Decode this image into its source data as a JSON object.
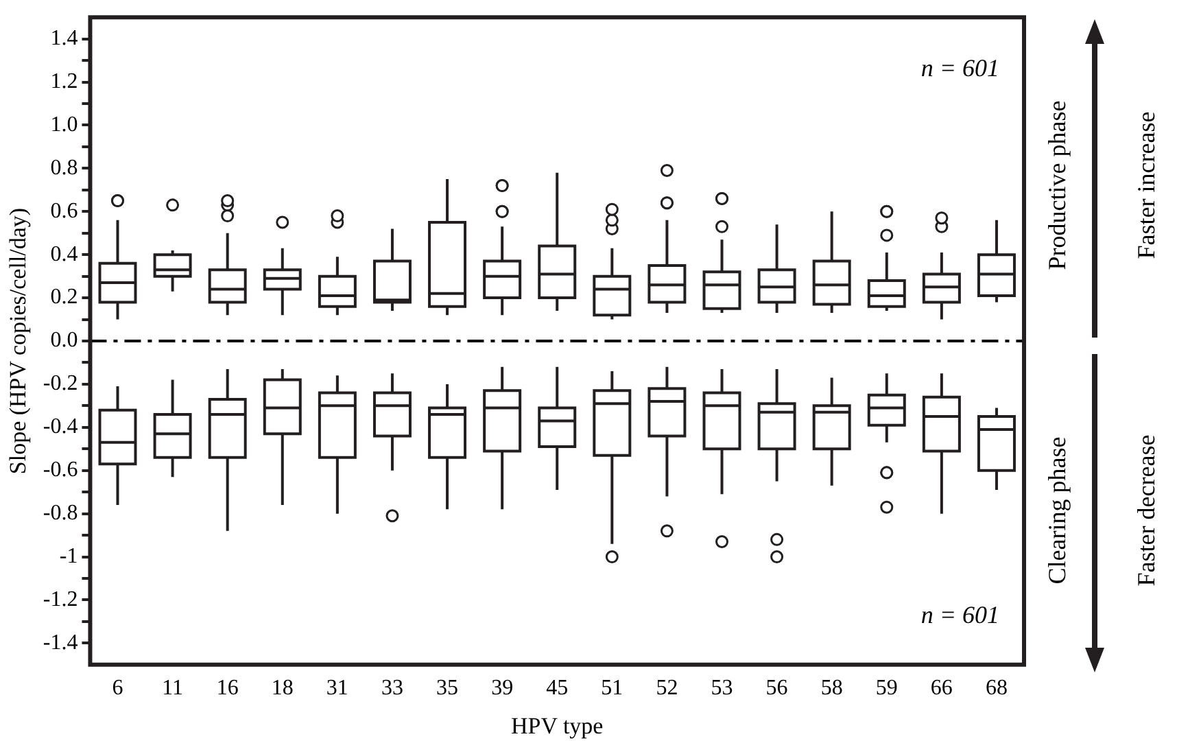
{
  "chart_data": {
    "type": "box",
    "xlabel": "HPV type",
    "ylabel": "Slope (HPV copies/cell/day)",
    "categories": [
      "6",
      "11",
      "16",
      "18",
      "31",
      "33",
      "35",
      "39",
      "45",
      "51",
      "52",
      "53",
      "56",
      "58",
      "59",
      "66",
      "68"
    ],
    "ylim": [
      -1.5,
      1.5
    ],
    "yticks": [
      -1.4,
      {
        "value": -1.3,
        "label": null
      },
      -1.2,
      {
        "value": -1.1,
        "label": null
      },
      -1.0,
      {
        "value": -0.9,
        "label": null
      },
      -0.8,
      {
        "value": -0.7,
        "label": null
      },
      -0.6,
      {
        "value": -0.5,
        "label": null
      },
      -0.4,
      {
        "value": -0.3,
        "label": null
      },
      -0.2,
      {
        "value": -0.1,
        "label": null
      },
      {
        "value": 0,
        "label": "0.0"
      },
      {
        "value": 0.1,
        "label": null
      },
      0.2,
      {
        "value": 0.3,
        "label": null
      },
      0.4,
      {
        "value": 0.5,
        "label": null
      },
      0.6,
      {
        "value": 0.7,
        "label": null
      },
      0.8,
      {
        "value": 0.9,
        "label": null
      },
      {
        "value": 1.0,
        "label": "1.0"
      },
      {
        "value": 1.1,
        "label": null
      },
      1.2,
      {
        "value": 1.3,
        "label": null
      },
      1.4
    ],
    "grid": false,
    "legend": false,
    "ref_lines": [
      {
        "axis": "y",
        "value": 0,
        "color": "#000000"
      }
    ],
    "annotations": [
      "n = 601",
      "n = 601",
      "Productive phase",
      "Faster increase",
      "Clearing phase",
      "Faster decrease"
    ],
    "series": [
      {
        "color": "#231f20",
        "boxes": [
          {
            "low": 0.1,
            "q1": 0.18,
            "median": 0.27,
            "q3": 0.36,
            "high": 0.56,
            "outliers": [
              0.65,
              0.65
            ]
          },
          {
            "low": 0.23,
            "q1": 0.3,
            "median": 0.33,
            "q3": 0.4,
            "high": 0.42,
            "outliers": [
              0.63
            ]
          },
          {
            "low": 0.12,
            "q1": 0.18,
            "median": 0.24,
            "q3": 0.33,
            "high": 0.5,
            "outliers": [
              0.58,
              0.63,
              0.65
            ]
          },
          {
            "low": 0.12,
            "q1": 0.24,
            "median": 0.29,
            "q3": 0.33,
            "high": 0.43,
            "outliers": [
              0.55
            ]
          },
          {
            "low": 0.12,
            "q1": 0.16,
            "median": 0.21,
            "q3": 0.3,
            "high": 0.39,
            "outliers": [
              0.55,
              0.58
            ]
          },
          {
            "low": 0.14,
            "q1": 0.18,
            "median": 0.19,
            "q3": 0.37,
            "high": 0.52
          },
          {
            "low": 0.12,
            "q1": 0.16,
            "median": 0.22,
            "q3": 0.55,
            "high": 0.75
          },
          {
            "low": 0.12,
            "q1": 0.2,
            "median": 0.3,
            "q3": 0.37,
            "high": 0.53,
            "outliers": [
              0.6,
              0.6,
              0.72,
              0.72
            ]
          },
          {
            "low": 0.14,
            "q1": 0.2,
            "median": 0.31,
            "q3": 0.44,
            "high": 0.78
          },
          {
            "low": 0.1,
            "q1": 0.12,
            "median": 0.24,
            "q3": 0.3,
            "high": 0.43,
            "outliers": [
              0.52,
              0.56,
              0.61
            ]
          },
          {
            "low": 0.13,
            "q1": 0.18,
            "median": 0.26,
            "q3": 0.35,
            "high": 0.56,
            "outliers": [
              0.64,
              0.64,
              0.79
            ]
          },
          {
            "low": 0.13,
            "q1": 0.15,
            "median": 0.26,
            "q3": 0.32,
            "high": 0.47,
            "outliers": [
              0.53,
              0.66,
              0.66
            ]
          },
          {
            "low": 0.13,
            "q1": 0.18,
            "median": 0.25,
            "q3": 0.33,
            "high": 0.54
          },
          {
            "low": 0.13,
            "q1": 0.17,
            "median": 0.26,
            "q3": 0.37,
            "high": 0.6
          },
          {
            "low": 0.14,
            "q1": 0.16,
            "median": 0.21,
            "q3": 0.28,
            "high": 0.41,
            "outliers": [
              0.49,
              0.6,
              0.6
            ]
          },
          {
            "low": 0.1,
            "q1": 0.18,
            "median": 0.25,
            "q3": 0.31,
            "high": 0.41,
            "outliers": [
              0.53,
              0.57
            ]
          },
          {
            "low": 0.18,
            "q1": 0.21,
            "median": 0.31,
            "q3": 0.4,
            "high": 0.56
          }
        ]
      },
      {
        "color": "#231f20",
        "boxes": [
          {
            "low": -0.76,
            "q1": -0.57,
            "median": -0.47,
            "q3": -0.32,
            "high": -0.21
          },
          {
            "low": -0.63,
            "q1": -0.54,
            "median": -0.43,
            "q3": -0.34,
            "high": -0.18
          },
          {
            "low": -0.88,
            "q1": -0.54,
            "median": -0.34,
            "q3": -0.27,
            "high": -0.13
          },
          {
            "low": -0.76,
            "q1": -0.43,
            "median": -0.31,
            "q3": -0.18,
            "high": -0.13
          },
          {
            "low": -0.8,
            "q1": -0.54,
            "median": -0.3,
            "q3": -0.24,
            "high": -0.16
          },
          {
            "low": -0.6,
            "q1": -0.44,
            "median": -0.3,
            "q3": -0.24,
            "high": -0.15,
            "outliers": [
              -0.81
            ]
          },
          {
            "low": -0.78,
            "q1": -0.54,
            "median": -0.34,
            "q3": -0.31,
            "high": -0.2
          },
          {
            "low": -0.78,
            "q1": -0.51,
            "median": -0.31,
            "q3": -0.23,
            "high": -0.12
          },
          {
            "low": -0.69,
            "q1": -0.49,
            "median": -0.37,
            "q3": -0.31,
            "high": -0.12
          },
          {
            "low": -0.94,
            "q1": -0.53,
            "median": -0.29,
            "q3": -0.23,
            "high": -0.14,
            "outliers": [
              -1.0
            ]
          },
          {
            "low": -0.72,
            "q1": -0.44,
            "median": -0.28,
            "q3": -0.22,
            "high": -0.12,
            "outliers": [
              -0.88
            ]
          },
          {
            "low": -0.71,
            "q1": -0.5,
            "median": -0.3,
            "q3": -0.24,
            "high": -0.13,
            "outliers": [
              -0.93
            ]
          },
          {
            "low": -0.65,
            "q1": -0.5,
            "median": -0.33,
            "q3": -0.29,
            "high": -0.13,
            "outliers": [
              -0.92,
              -1.0
            ]
          },
          {
            "low": -0.67,
            "q1": -0.5,
            "median": -0.33,
            "q3": -0.3,
            "high": -0.17
          },
          {
            "low": -0.47,
            "q1": -0.39,
            "median": -0.31,
            "q3": -0.25,
            "high": -0.15,
            "outliers": [
              -0.61,
              -0.61,
              -0.77
            ]
          },
          {
            "low": -0.8,
            "q1": -0.51,
            "median": -0.35,
            "q3": -0.26,
            "high": -0.15
          },
          {
            "low": -0.69,
            "q1": -0.6,
            "median": -0.41,
            "q3": -0.35,
            "high": -0.31
          }
        ]
      }
    ]
  }
}
